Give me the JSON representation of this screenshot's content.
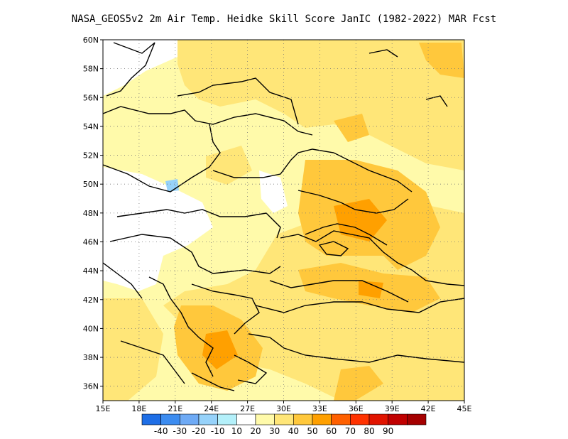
{
  "title": "NASA_GEOS5v2  2m Air Temp. Heidke Skill Score JanIC (1982-2022) MAR Fcst",
  "map": {
    "lon_range": [
      15,
      45
    ],
    "lat_range": [
      35,
      60
    ],
    "grid": "dotted",
    "x_ticks": [
      "15E",
      "18E",
      "21E",
      "24E",
      "27E",
      "30E",
      "33E",
      "36E",
      "39E",
      "42E",
      "45E"
    ],
    "y_ticks": [
      "36N",
      "38N",
      "40N",
      "42N",
      "44N",
      "46N",
      "48N",
      "50N",
      "52N",
      "54N",
      "56N",
      "58N",
      "60N"
    ]
  },
  "colorbar": {
    "colors": [
      "#1e6ee6",
      "#3c8cf0",
      "#6eaaf5",
      "#96d2fa",
      "#b4f0fa",
      "#ffffff",
      "#fffaaa",
      "#ffe678",
      "#ffc83c",
      "#ffa000",
      "#ff6000",
      "#ff3200",
      "#e11400",
      "#c00000",
      "#a50000"
    ],
    "labels": [
      "-40",
      "-30",
      "-20",
      "-10",
      "10",
      "20",
      "30",
      "40",
      "50",
      "60",
      "70",
      "80",
      "90"
    ]
  }
}
